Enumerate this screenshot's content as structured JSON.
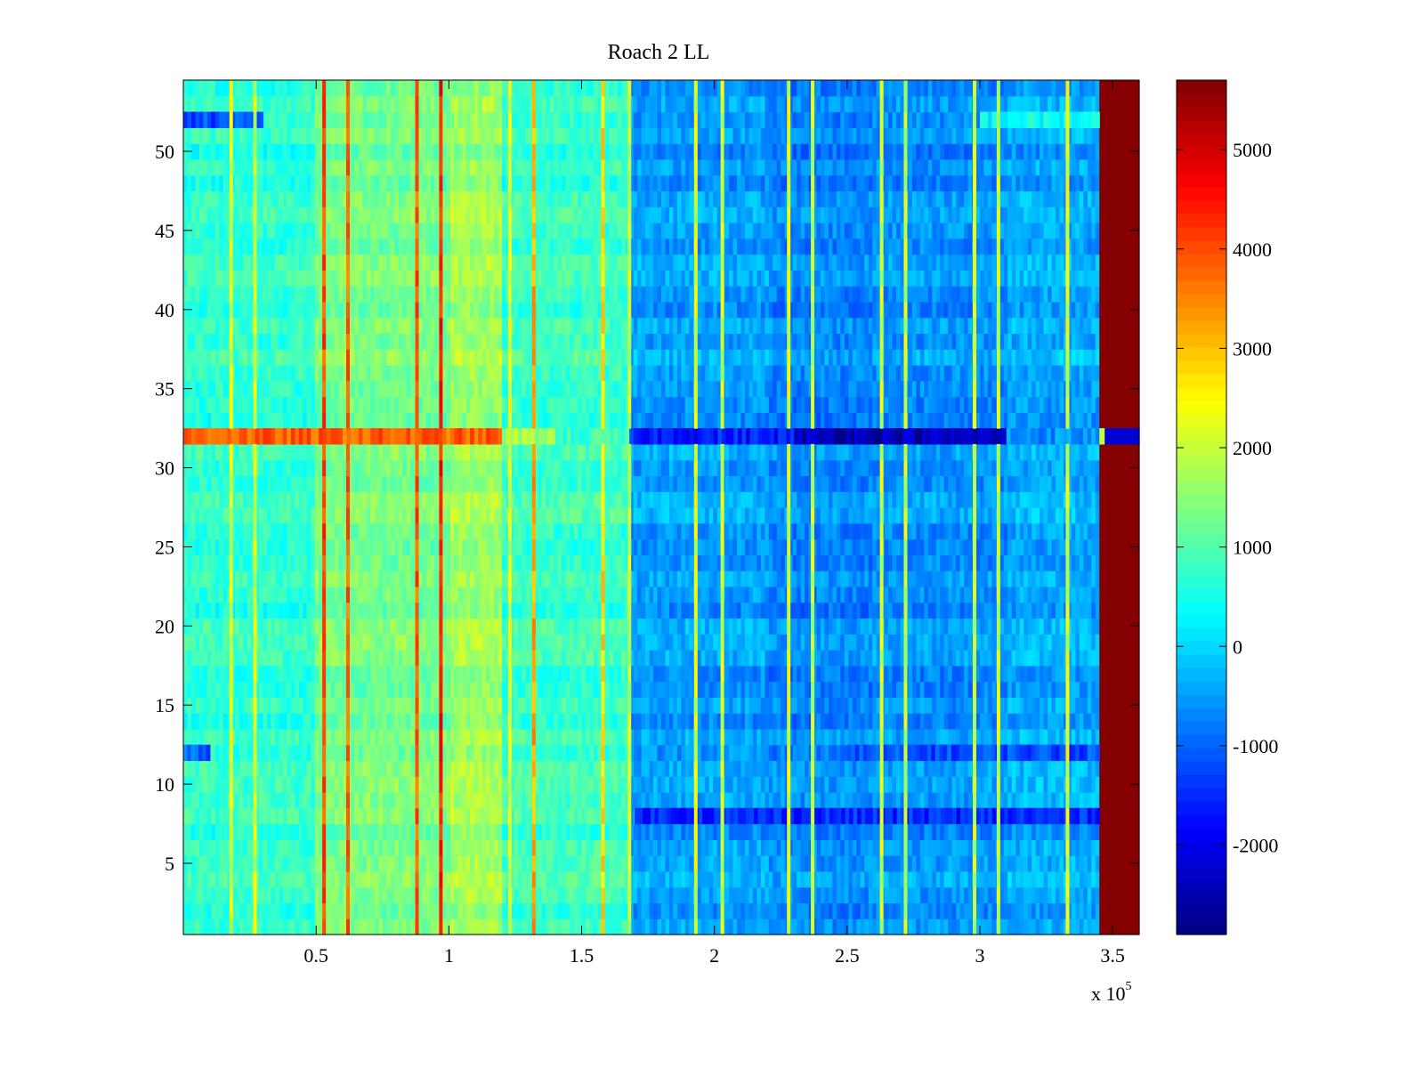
{
  "chart_data": {
    "type": "heatmap",
    "title": "Roach 2 LL",
    "xlabel": "",
    "ylabel": "",
    "x_multiplier_base": "x 10",
    "x_multiplier_exp": "5",
    "xlim": [
      0,
      3.6
    ],
    "ylim": [
      0.5,
      54.5
    ],
    "x_ticks": [
      0.5,
      1,
      1.5,
      2,
      2.5,
      3,
      3.5
    ],
    "x_tick_labels": [
      "0.5",
      "1",
      "1.5",
      "2",
      "2.5",
      "3",
      "3.5"
    ],
    "y_ticks": [
      5,
      10,
      15,
      20,
      25,
      30,
      35,
      40,
      45,
      50
    ],
    "y_tick_labels": [
      "5",
      "10",
      "15",
      "20",
      "25",
      "30",
      "35",
      "40",
      "45",
      "50"
    ],
    "colormap": "jet",
    "clim": [
      -2900,
      5700
    ],
    "colorbar_ticks": [
      -2000,
      -1000,
      0,
      1000,
      2000,
      3000,
      4000,
      5000
    ],
    "colorbar_tick_labels": [
      "-2000",
      "-1000",
      "0",
      "1000",
      "2000",
      "3000",
      "4000",
      "5000"
    ],
    "rows": 54,
    "x_band_edges": [
      0,
      0.5,
      1.0,
      1.2,
      1.68,
      2.2,
      2.6,
      3.1,
      3.45,
      3.6
    ],
    "x_band_values": [
      700,
      1300,
      1650,
      800,
      -500,
      -700,
      -600,
      -400,
      5650
    ],
    "bright_column_lines": [
      {
        "x": 0.18,
        "value": 2200
      },
      {
        "x": 0.27,
        "value": 2100
      },
      {
        "x": 0.53,
        "value": 4000
      },
      {
        "x": 0.62,
        "value": 3800
      },
      {
        "x": 0.88,
        "value": 3900
      },
      {
        "x": 0.97,
        "value": 4400
      },
      {
        "x": 1.23,
        "value": 2200
      },
      {
        "x": 1.32,
        "value": 3200
      },
      {
        "x": 1.58,
        "value": 2700
      },
      {
        "x": 1.68,
        "value": 2000
      },
      {
        "x": 1.93,
        "value": 2200
      },
      {
        "x": 2.03,
        "value": 2000
      },
      {
        "x": 2.28,
        "value": 2200
      },
      {
        "x": 2.37,
        "value": 2000
      },
      {
        "x": 2.63,
        "value": 2100
      },
      {
        "x": 2.72,
        "value": 2000
      },
      {
        "x": 2.98,
        "value": 2100
      },
      {
        "x": 3.07,
        "value": 2000
      },
      {
        "x": 3.33,
        "value": 2200
      }
    ],
    "special_rows": [
      {
        "row": 32,
        "segments": [
          {
            "x0": 0,
            "x1": 1.2,
            "value": 3800
          },
          {
            "x0": 1.2,
            "x1": 1.4,
            "value": 1700
          },
          {
            "x0": 1.4,
            "x1": 1.68,
            "value": 800
          },
          {
            "x0": 1.68,
            "x1": 2.3,
            "value": -1600
          },
          {
            "x0": 2.3,
            "x1": 3.1,
            "value": -2400
          },
          {
            "x0": 3.1,
            "x1": 3.45,
            "value": -600
          },
          {
            "x0": 3.45,
            "x1": 3.47,
            "value": 2000
          },
          {
            "x0": 3.47,
            "x1": 3.6,
            "value": -2200
          }
        ]
      },
      {
        "row": 52,
        "segments": [
          {
            "x0": 0,
            "x1": 0.3,
            "value": -1200
          },
          {
            "x0": 3.0,
            "x1": 3.45,
            "value": 400
          }
        ]
      },
      {
        "row": 12,
        "segments": [
          {
            "x0": 0,
            "x1": 0.1,
            "value": -1000
          },
          {
            "x0": 2.5,
            "x1": 3.45,
            "value": -1200
          }
        ]
      },
      {
        "row": 8,
        "segments": [
          {
            "x0": 1.7,
            "x1": 3.45,
            "value": -1500
          }
        ]
      }
    ]
  }
}
